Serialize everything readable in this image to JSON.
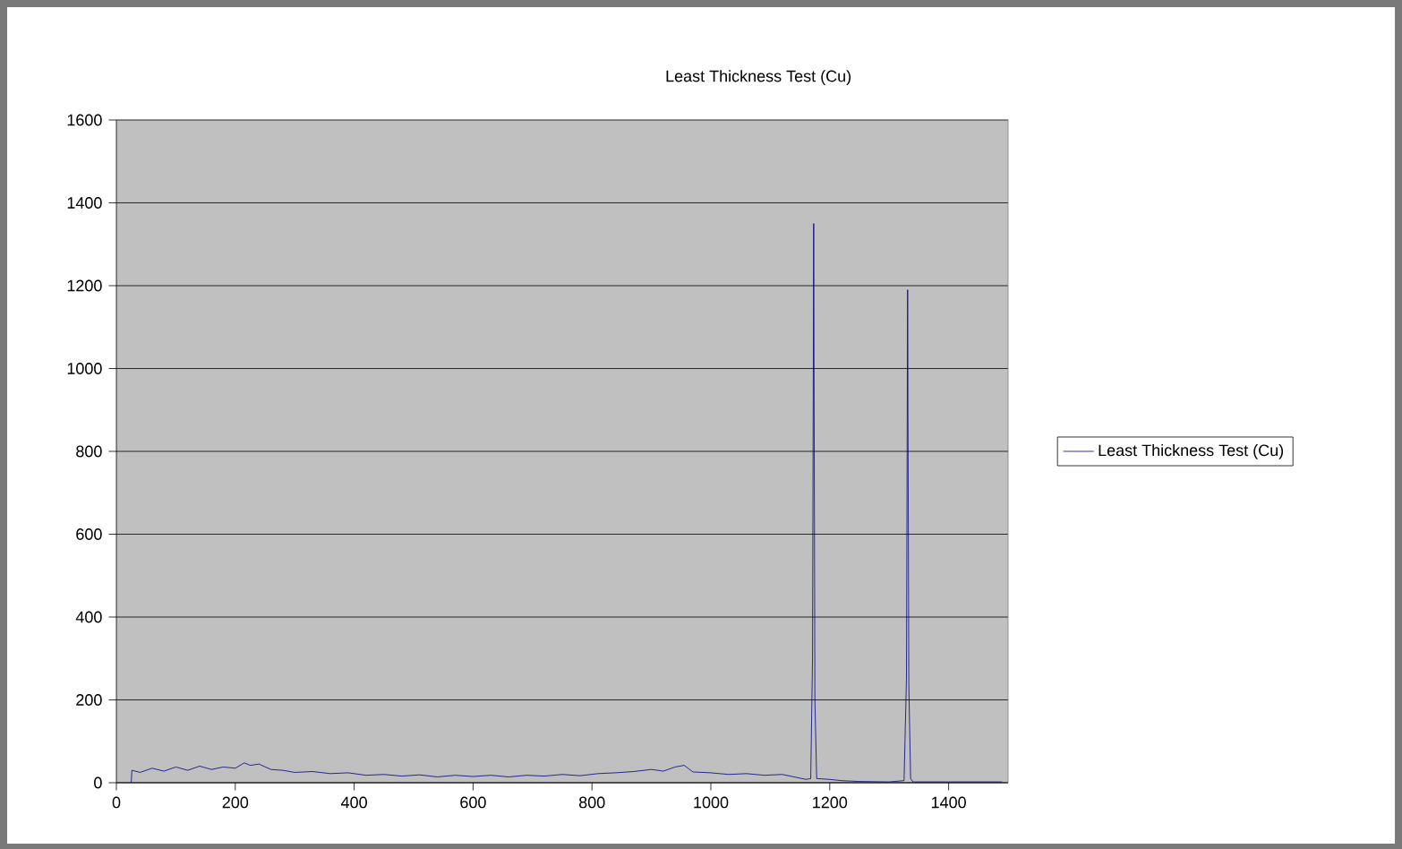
{
  "chart_data": {
    "type": "line",
    "title": "Least Thickness Test (Cu)",
    "xlim": [
      0,
      1500
    ],
    "xticks": [
      0,
      200,
      400,
      600,
      800,
      1000,
      1200,
      1400
    ],
    "ylim": [
      0,
      1600
    ],
    "yticks": [
      0,
      200,
      400,
      600,
      800,
      1000,
      1200,
      1400,
      1600
    ],
    "grid": "y",
    "legend": "right",
    "marker": "none",
    "line_style": "solid",
    "series": [
      {
        "name": "Least Thickness Test (Cu)",
        "color": "#000080",
        "x": [
          25,
          26,
          40,
          60,
          80,
          100,
          120,
          140,
          160,
          180,
          200,
          215,
          225,
          240,
          260,
          280,
          300,
          330,
          360,
          390,
          420,
          450,
          480,
          510,
          540,
          570,
          600,
          630,
          660,
          690,
          720,
          750,
          780,
          810,
          840,
          870,
          900,
          920,
          940,
          955,
          970,
          1000,
          1030,
          1060,
          1090,
          1120,
          1140,
          1160,
          1168,
          1171,
          1173,
          1175,
          1178,
          1200,
          1220,
          1250,
          1300,
          1325,
          1329,
          1331,
          1333,
          1336,
          1340,
          1400,
          1460,
          1490
        ],
        "values": [
          0,
          30,
          25,
          35,
          28,
          38,
          30,
          40,
          32,
          38,
          35,
          48,
          42,
          45,
          32,
          30,
          25,
          27,
          22,
          24,
          18,
          20,
          16,
          19,
          14,
          18,
          15,
          18,
          14,
          18,
          16,
          20,
          17,
          22,
          24,
          27,
          32,
          28,
          38,
          42,
          26,
          24,
          20,
          22,
          18,
          20,
          14,
          8,
          10,
          300,
          1350,
          200,
          10,
          8,
          5,
          3,
          2,
          5,
          250,
          1190,
          240,
          10,
          2,
          2,
          2,
          2
        ]
      }
    ]
  }
}
